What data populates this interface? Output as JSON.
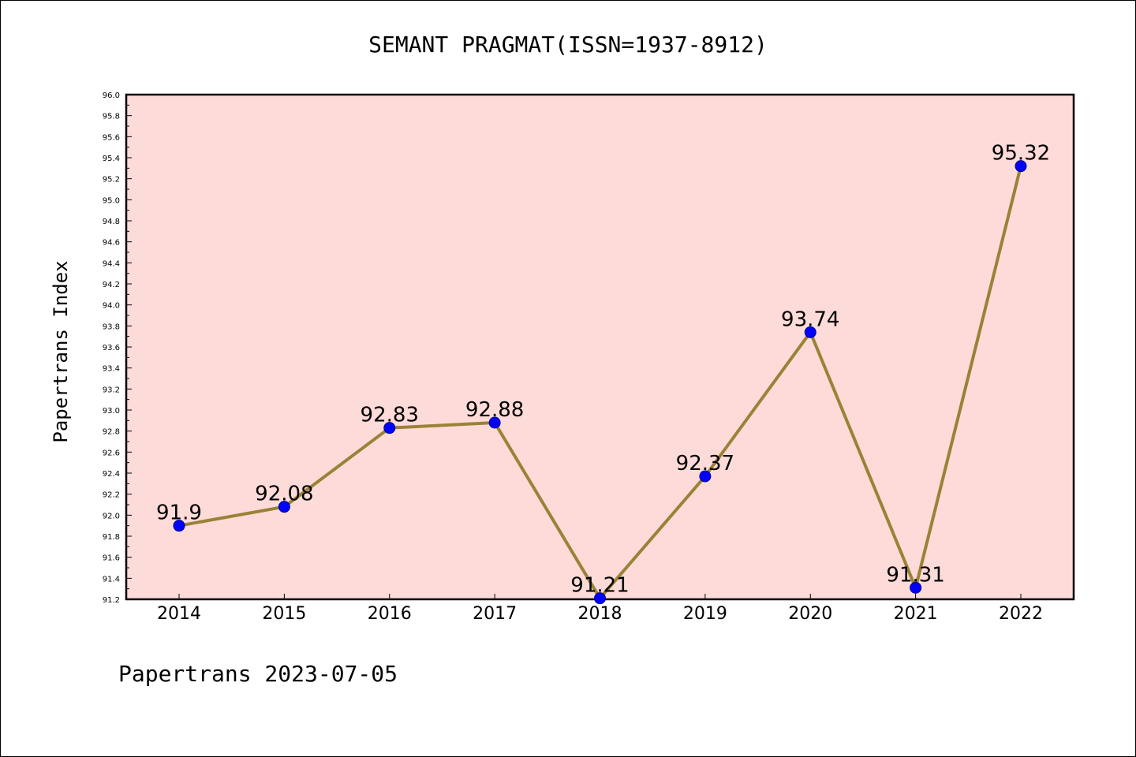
{
  "chart_data": {
    "type": "line",
    "title": "SEMANT PRAGMAT(ISSN=1937-8912)",
    "ylabel": "Papertrans Index",
    "xlabel": "",
    "footer": "Papertrans 2023-07-05",
    "categories": [
      "2014",
      "2015",
      "2016",
      "2017",
      "2018",
      "2019",
      "2020",
      "2021",
      "2022"
    ],
    "series": [
      {
        "values": [
          91.9,
          92.08,
          92.83,
          92.88,
          91.21,
          92.37,
          93.74,
          91.31,
          95.32
        ],
        "labels": [
          "91.9",
          "92.08",
          "92.83",
          "92.88",
          "91.21",
          "92.37",
          "93.74",
          "91.31",
          "95.32"
        ]
      }
    ],
    "ylim": [
      91.2,
      96.0
    ],
    "ytick_step": 0.2,
    "ytick_labels": [
      "91.2",
      "91.4",
      "91.6",
      "91.8",
      "92.0",
      "92.2",
      "92.4",
      "92.6",
      "92.8",
      "93.0",
      "93.2",
      "93.4",
      "93.6",
      "93.8",
      "94.0",
      "94.2",
      "94.4",
      "94.6",
      "94.8",
      "95.0",
      "95.2",
      "95.4",
      "95.6",
      "95.8",
      "96.0"
    ],
    "grid": false,
    "legend": "none",
    "colors": {
      "plot_background": "#fddbd9",
      "line": "#9a8236",
      "marker": "#0000ff",
      "axis": "#000000"
    }
  }
}
